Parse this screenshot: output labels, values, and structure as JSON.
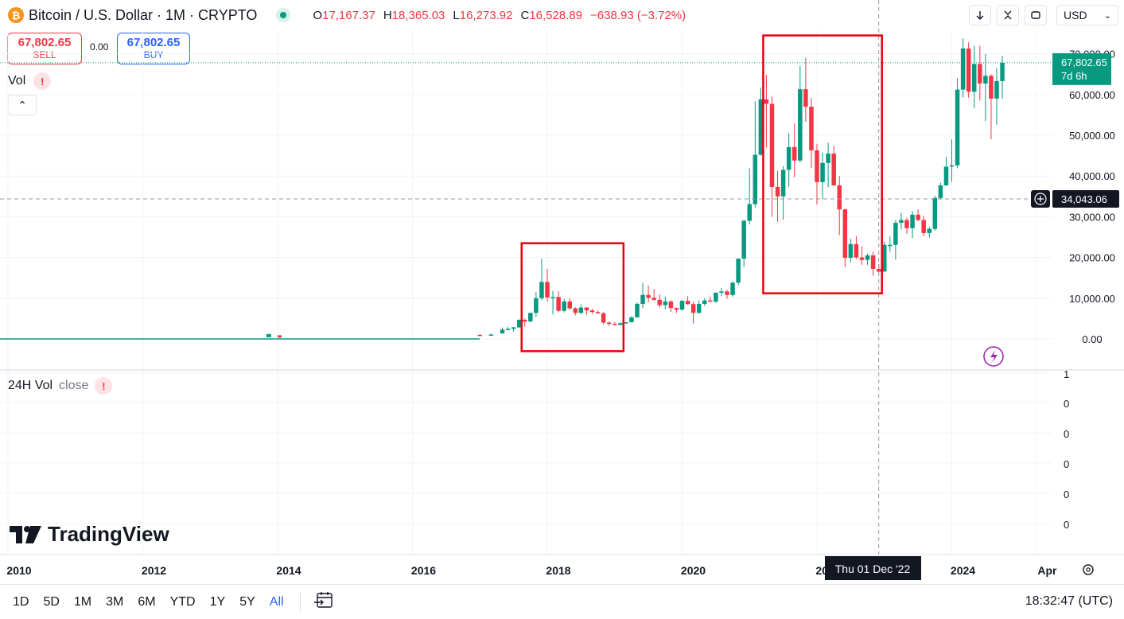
{
  "header": {
    "coin_symbol": "₿",
    "title": "Bitcoin / U.S. Dollar · 1M · CRYPTO",
    "ohlc": [
      {
        "label": "O",
        "value": "17,167.37"
      },
      {
        "label": "H",
        "value": "18,365.03"
      },
      {
        "label": "L",
        "value": "16,273.92"
      },
      {
        "label": "C",
        "value": "16,528.89"
      },
      {
        "label": "",
        "value": "−638.93 (−3.72%)"
      }
    ],
    "currency": "USD",
    "icons": [
      "arrow-down-icon",
      "collapse-icon",
      "fullscreen-icon"
    ]
  },
  "trade": {
    "sell_price": "67,802.65",
    "sell_label": "SELL",
    "spread": "0.00",
    "buy_price": "67,802.65",
    "buy_label": "BUY"
  },
  "indicators": {
    "vol_label": "Vol",
    "vol24_label": "24H Vol",
    "vol24_sub": "close"
  },
  "crosshair": {
    "price_label": "34,043.06",
    "date_label": "Thu 01 Dec '22"
  },
  "last_price": {
    "price": "67,802.65",
    "countdown": "7d 6h"
  },
  "branding": "TradingView",
  "bottom_bar": {
    "timeframes": [
      "1D",
      "5D",
      "1M",
      "3M",
      "6M",
      "YTD",
      "1Y",
      "5Y",
      "All"
    ],
    "active": "All",
    "clock": "18:32:47 (UTC)"
  },
  "colors": {
    "up": "#089981",
    "down": "#f23645",
    "annotation": "#e8000b"
  },
  "chart_data": {
    "type": "candlestick",
    "x_axis_labels": [
      "2010",
      "2012",
      "2014",
      "2016",
      "2018",
      "2020",
      "2022",
      "2024",
      "Apr"
    ],
    "y_axis_labels": [
      "70,000.00",
      "60,000.00",
      "50,000.00",
      "40,000.00",
      "30,000.00",
      "20,000.00",
      "10,000.00",
      "0.00"
    ],
    "ylim": [
      0,
      70000
    ],
    "lower_pane_labels": [
      "1",
      "0",
      "0",
      "0",
      "0",
      "0"
    ],
    "annotations": [
      {
        "type": "rectangle",
        "from": "2017-09",
        "to": "2019-02",
        "low": -3000,
        "high": 23500
      },
      {
        "type": "rectangle",
        "from": "2021-04",
        "to": "2022-12",
        "low": 11200,
        "high": 74500
      }
    ],
    "candles": [
      {
        "t": "2017-01",
        "o": 1000,
        "h": 1200,
        "l": 800,
        "c": 970
      },
      {
        "t": "2017-03",
        "o": 970,
        "h": 1300,
        "l": 900,
        "c": 1080
      },
      {
        "t": "2017-05",
        "o": 1350,
        "h": 2800,
        "l": 1300,
        "c": 2300
      },
      {
        "t": "2017-06",
        "o": 2300,
        "h": 3000,
        "l": 2100,
        "c": 2500
      },
      {
        "t": "2017-07",
        "o": 2500,
        "h": 2900,
        "l": 1800,
        "c": 2850
      },
      {
        "t": "2017-08",
        "o": 2850,
        "h": 4800,
        "l": 2700,
        "c": 4700
      },
      {
        "t": "2017-09",
        "o": 4700,
        "h": 5000,
        "l": 3000,
        "c": 4300
      },
      {
        "t": "2017-10",
        "o": 4300,
        "h": 6400,
        "l": 4100,
        "c": 6400
      },
      {
        "t": "2017-11",
        "o": 6400,
        "h": 11500,
        "l": 5400,
        "c": 10000
      },
      {
        "t": "2017-12",
        "o": 10000,
        "h": 19700,
        "l": 9500,
        "c": 14000
      },
      {
        "t": "2018-01",
        "o": 14000,
        "h": 17200,
        "l": 9200,
        "c": 10200
      },
      {
        "t": "2018-02",
        "o": 10200,
        "h": 11800,
        "l": 6000,
        "c": 10300
      },
      {
        "t": "2018-03",
        "o": 10300,
        "h": 11700,
        "l": 6600,
        "c": 6900
      },
      {
        "t": "2018-04",
        "o": 6900,
        "h": 9800,
        "l": 6500,
        "c": 9200
      },
      {
        "t": "2018-05",
        "o": 9200,
        "h": 10000,
        "l": 7100,
        "c": 7500
      },
      {
        "t": "2018-06",
        "o": 7500,
        "h": 7800,
        "l": 5800,
        "c": 6400
      },
      {
        "t": "2018-07",
        "o": 6400,
        "h": 8500,
        "l": 6100,
        "c": 7700
      },
      {
        "t": "2018-08",
        "o": 7700,
        "h": 7800,
        "l": 5900,
        "c": 7000
      },
      {
        "t": "2018-09",
        "o": 7000,
        "h": 7400,
        "l": 6200,
        "c": 6600
      },
      {
        "t": "2018-10",
        "o": 6600,
        "h": 7000,
        "l": 6200,
        "c": 6300
      },
      {
        "t": "2018-11",
        "o": 6300,
        "h": 6600,
        "l": 3600,
        "c": 4000
      },
      {
        "t": "2018-12",
        "o": 4000,
        "h": 4300,
        "l": 3200,
        "c": 3700
      },
      {
        "t": "2019-01",
        "o": 3700,
        "h": 4100,
        "l": 3400,
        "c": 3450
      },
      {
        "t": "2019-02",
        "o": 3450,
        "h": 4200,
        "l": 3400,
        "c": 3850
      },
      {
        "t": "2019-03",
        "o": 3850,
        "h": 4100,
        "l": 3700,
        "c": 4100
      },
      {
        "t": "2019-04",
        "o": 4100,
        "h": 5600,
        "l": 4100,
        "c": 5300
      },
      {
        "t": "2019-05",
        "o": 5300,
        "h": 9000,
        "l": 5300,
        "c": 8600
      },
      {
        "t": "2019-06",
        "o": 8600,
        "h": 13800,
        "l": 7500,
        "c": 10800
      },
      {
        "t": "2019-07",
        "o": 10800,
        "h": 13100,
        "l": 9000,
        "c": 10100
      },
      {
        "t": "2019-08",
        "o": 10100,
        "h": 12300,
        "l": 9400,
        "c": 9600
      },
      {
        "t": "2019-09",
        "o": 9600,
        "h": 10900,
        "l": 7700,
        "c": 8300
      },
      {
        "t": "2019-10",
        "o": 8300,
        "h": 10400,
        "l": 7300,
        "c": 9200
      },
      {
        "t": "2019-11",
        "o": 9200,
        "h": 9500,
        "l": 6600,
        "c": 7600
      },
      {
        "t": "2019-12",
        "o": 7600,
        "h": 7700,
        "l": 6400,
        "c": 7200
      },
      {
        "t": "2020-01",
        "o": 7200,
        "h": 9600,
        "l": 6900,
        "c": 9350
      },
      {
        "t": "2020-02",
        "o": 9350,
        "h": 10500,
        "l": 8400,
        "c": 8550
      },
      {
        "t": "2020-03",
        "o": 8550,
        "h": 9200,
        "l": 3800,
        "c": 6400
      },
      {
        "t": "2020-04",
        "o": 6400,
        "h": 9500,
        "l": 6200,
        "c": 8600
      },
      {
        "t": "2020-05",
        "o": 8600,
        "h": 10000,
        "l": 8100,
        "c": 9450
      },
      {
        "t": "2020-06",
        "o": 9450,
        "h": 10400,
        "l": 8900,
        "c": 9150
      },
      {
        "t": "2020-07",
        "o": 9150,
        "h": 11400,
        "l": 8900,
        "c": 11350
      },
      {
        "t": "2020-08",
        "o": 11350,
        "h": 12500,
        "l": 10500,
        "c": 11650
      },
      {
        "t": "2020-09",
        "o": 11650,
        "h": 12100,
        "l": 9900,
        "c": 10800
      },
      {
        "t": "2020-10",
        "o": 10800,
        "h": 14100,
        "l": 10400,
        "c": 13800
      },
      {
        "t": "2020-11",
        "o": 13800,
        "h": 19800,
        "l": 13200,
        "c": 19700
      },
      {
        "t": "2020-12",
        "o": 19700,
        "h": 29300,
        "l": 17600,
        "c": 29000
      },
      {
        "t": "2021-01",
        "o": 29000,
        "h": 41900,
        "l": 28100,
        "c": 33100
      },
      {
        "t": "2021-02",
        "o": 33100,
        "h": 58300,
        "l": 32300,
        "c": 45200
      },
      {
        "t": "2021-03",
        "o": 45200,
        "h": 61700,
        "l": 45000,
        "c": 58800
      },
      {
        "t": "2021-04",
        "o": 58800,
        "h": 64800,
        "l": 47000,
        "c": 57700
      },
      {
        "t": "2021-05",
        "o": 57700,
        "h": 59500,
        "l": 30000,
        "c": 37300
      },
      {
        "t": "2021-06",
        "o": 37300,
        "h": 41300,
        "l": 28800,
        "c": 35000
      },
      {
        "t": "2021-07",
        "o": 35000,
        "h": 42400,
        "l": 29300,
        "c": 41500
      },
      {
        "t": "2021-08",
        "o": 41500,
        "h": 50500,
        "l": 37300,
        "c": 47100
      },
      {
        "t": "2021-09",
        "o": 47100,
        "h": 52900,
        "l": 39600,
        "c": 43800
      },
      {
        "t": "2021-10",
        "o": 43800,
        "h": 67000,
        "l": 43300,
        "c": 61300
      },
      {
        "t": "2021-11",
        "o": 61300,
        "h": 69000,
        "l": 53300,
        "c": 57000
      },
      {
        "t": "2021-12",
        "o": 57000,
        "h": 59100,
        "l": 42000,
        "c": 46300
      },
      {
        "t": "2022-01",
        "o": 46300,
        "h": 47900,
        "l": 33000,
        "c": 38500
      },
      {
        "t": "2022-02",
        "o": 38500,
        "h": 45800,
        "l": 34300,
        "c": 43200
      },
      {
        "t": "2022-03",
        "o": 43200,
        "h": 48200,
        "l": 37200,
        "c": 45500
      },
      {
        "t": "2022-04",
        "o": 45500,
        "h": 47400,
        "l": 37600,
        "c": 37700
      },
      {
        "t": "2022-05",
        "o": 37700,
        "h": 40000,
        "l": 25500,
        "c": 31800
      },
      {
        "t": "2022-06",
        "o": 31800,
        "h": 32000,
        "l": 17600,
        "c": 19900
      },
      {
        "t": "2022-07",
        "o": 19900,
        "h": 24600,
        "l": 18800,
        "c": 23300
      },
      {
        "t": "2022-08",
        "o": 23300,
        "h": 25200,
        "l": 19600,
        "c": 20000
      },
      {
        "t": "2022-09",
        "o": 20000,
        "h": 22700,
        "l": 18200,
        "c": 19400
      },
      {
        "t": "2022-10",
        "o": 19400,
        "h": 21000,
        "l": 18200,
        "c": 20500
      },
      {
        "t": "2022-11",
        "o": 20500,
        "h": 21400,
        "l": 15500,
        "c": 17200
      },
      {
        "t": "2022-12",
        "o": 17167,
        "h": 18365,
        "l": 16274,
        "c": 16529
      },
      {
        "t": "2023-01",
        "o": 16529,
        "h": 23900,
        "l": 16500,
        "c": 23100
      },
      {
        "t": "2023-02",
        "o": 23100,
        "h": 25200,
        "l": 21400,
        "c": 23100
      },
      {
        "t": "2023-03",
        "o": 23100,
        "h": 29200,
        "l": 19500,
        "c": 28500
      },
      {
        "t": "2023-04",
        "o": 28500,
        "h": 31000,
        "l": 26900,
        "c": 29200
      },
      {
        "t": "2023-05",
        "o": 29200,
        "h": 29800,
        "l": 25800,
        "c": 27200
      },
      {
        "t": "2023-06",
        "o": 27200,
        "h": 31400,
        "l": 24800,
        "c": 30500
      },
      {
        "t": "2023-07",
        "o": 30500,
        "h": 31800,
        "l": 28900,
        "c": 29200
      },
      {
        "t": "2023-08",
        "o": 29200,
        "h": 30200,
        "l": 25200,
        "c": 26000
      },
      {
        "t": "2023-09",
        "o": 26000,
        "h": 27500,
        "l": 24900,
        "c": 27000
      },
      {
        "t": "2023-10",
        "o": 27000,
        "h": 35200,
        "l": 26600,
        "c": 34600
      },
      {
        "t": "2023-11",
        "o": 34600,
        "h": 38400,
        "l": 34100,
        "c": 37700
      },
      {
        "t": "2023-12",
        "o": 37700,
        "h": 44700,
        "l": 37600,
        "c": 42300
      },
      {
        "t": "2024-01",
        "o": 42300,
        "h": 49000,
        "l": 38600,
        "c": 42600
      },
      {
        "t": "2024-02",
        "o": 42600,
        "h": 64000,
        "l": 41900,
        "c": 61200
      },
      {
        "t": "2024-03",
        "o": 61200,
        "h": 73800,
        "l": 59300,
        "c": 71300
      },
      {
        "t": "2024-04",
        "o": 71300,
        "h": 72800,
        "l": 59200,
        "c": 60700
      },
      {
        "t": "2024-05",
        "o": 60700,
        "h": 71900,
        "l": 56600,
        "c": 67500
      },
      {
        "t": "2024-06",
        "o": 67500,
        "h": 72000,
        "l": 58500,
        "c": 62700
      },
      {
        "t": "2024-07",
        "o": 62700,
        "h": 70000,
        "l": 53500,
        "c": 64600
      },
      {
        "t": "2024-08",
        "o": 64600,
        "h": 65000,
        "l": 49000,
        "c": 59000
      },
      {
        "t": "2024-09",
        "o": 59000,
        "h": 66500,
        "l": 52600,
        "c": 63300
      },
      {
        "t": "2024-10",
        "o": 63300,
        "h": 69500,
        "l": 58900,
        "c": 67802.65
      }
    ]
  }
}
